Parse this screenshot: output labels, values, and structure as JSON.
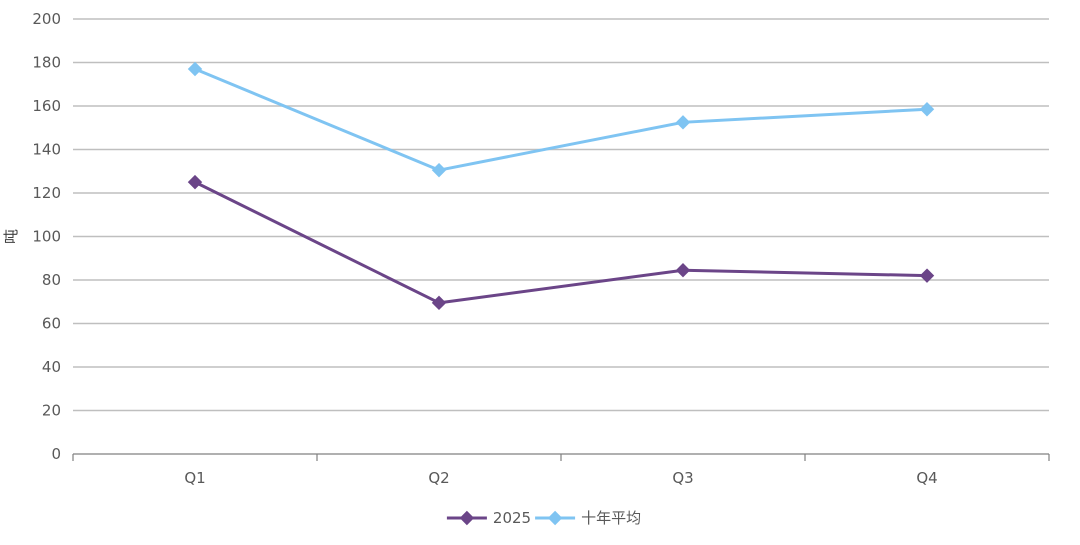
{
  "chart_data": {
    "type": "line",
    "title": "",
    "xlabel": "",
    "ylabel": "吨",
    "categories": [
      "Q1",
      "Q2",
      "Q3",
      "Q4"
    ],
    "ylim": [
      0,
      200
    ],
    "yticks": [
      0,
      20,
      40,
      60,
      80,
      100,
      120,
      140,
      160,
      180,
      200
    ],
    "grid": true,
    "legend_position": "bottom",
    "series": [
      {
        "name": "2025",
        "values": [
          125,
          69.5,
          84.5,
          82
        ],
        "color": "#6b4588",
        "marker": "diamond"
      },
      {
        "name": "十年平均",
        "values": [
          177,
          130.5,
          152.5,
          158.5
        ],
        "color": "#7fc4f2",
        "marker": "diamond"
      }
    ]
  }
}
